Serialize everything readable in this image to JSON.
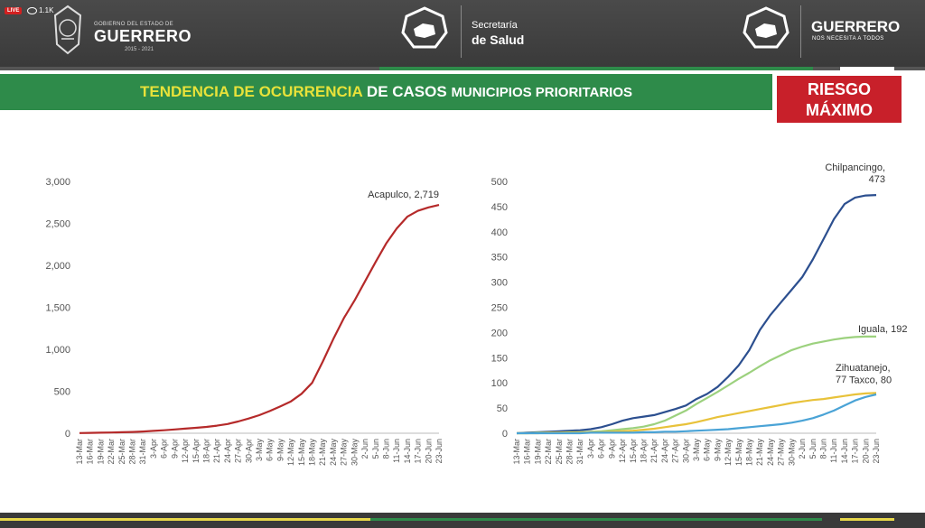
{
  "header": {
    "live_badge": "LIVE",
    "viewer_count": "1.1K",
    "gov_small": "GOBIERNO DEL ESTADO DE",
    "gov_big": "GUERRERO",
    "gov_years": "2015 - 2021",
    "secretaria_small": "Secretaría",
    "secretaria_big": "de Salud",
    "guerrero_big": "GUERRERO",
    "guerrero_tagline": "NOS NECESITA A TODOS"
  },
  "banner": {
    "part1": "TENDENCIA DE OCURRENCIA",
    "part2": " DE CASOS ",
    "part3": "MUNICIPIOS PRIORITARIOS",
    "riesgo_line1": "RIESGO",
    "riesgo_line2": "MÁXIMO"
  },
  "colors": {
    "banner_green": "#2e8b4a",
    "accent_yellow": "#e8e23a",
    "riesgo_red": "#c8202a",
    "acapulco": "#b52a2a",
    "chilpancingo": "#2c4f8f",
    "iguala": "#9cd17e",
    "taxco": "#e8c23a",
    "zihuatanejo": "#4aa3d6"
  },
  "chart_data": [
    {
      "type": "line",
      "x": [
        "13-Mar",
        "16-Mar",
        "19-Mar",
        "22-Mar",
        "25-Mar",
        "28-Mar",
        "31-Mar",
        "3-Apr",
        "6-Apr",
        "9-Apr",
        "12-Apr",
        "15-Apr",
        "18-Apr",
        "21-Apr",
        "24-Apr",
        "27-Apr",
        "30-Apr",
        "3-May",
        "6-May",
        "9-May",
        "12-May",
        "15-May",
        "18-May",
        "21-May",
        "24-May",
        "27-May",
        "30-May",
        "2-Jun",
        "5-Jun",
        "8-Jun",
        "11-Jun",
        "14-Jun",
        "17-Jun",
        "20-Jun",
        "23-Jun"
      ],
      "ylim": [
        0,
        3000
      ],
      "yticks": [
        "0",
        "500",
        "1,000",
        "1,500",
        "2,000",
        "2,500",
        "3,000"
      ],
      "ytick_values": [
        0,
        500,
        1000,
        1500,
        2000,
        2500,
        3000
      ],
      "series": [
        {
          "name": "Acapulco",
          "label": "Acapulco, 2,719",
          "values": [
            2,
            4,
            6,
            9,
            12,
            15,
            20,
            28,
            35,
            45,
            55,
            65,
            75,
            90,
            110,
            140,
            175,
            215,
            265,
            320,
            380,
            470,
            600,
            850,
            1120,
            1370,
            1580,
            1810,
            2040,
            2260,
            2440,
            2580,
            2650,
            2690,
            2719
          ]
        }
      ]
    },
    {
      "type": "line",
      "x": [
        "13-Mar",
        "16-Mar",
        "19-Mar",
        "22-Mar",
        "25-Mar",
        "28-Mar",
        "31-Mar",
        "3-Apr",
        "6-Apr",
        "9-Apr",
        "12-Apr",
        "15-Apr",
        "18-Apr",
        "21-Apr",
        "24-Apr",
        "27-Apr",
        "30-Apr",
        "3-May",
        "6-May",
        "9-May",
        "12-May",
        "15-May",
        "18-May",
        "21-May",
        "24-May",
        "27-May",
        "30-May",
        "2-Jun",
        "5-Jun",
        "8-Jun",
        "11-Jun",
        "14-Jun",
        "17-Jun",
        "20-Jun",
        "23-Jun"
      ],
      "ylim": [
        0,
        500
      ],
      "yticks": [
        "0",
        "50",
        "100",
        "150",
        "200",
        "250",
        "300",
        "350",
        "400",
        "450",
        "500"
      ],
      "ytick_values": [
        0,
        50,
        100,
        150,
        200,
        250,
        300,
        350,
        400,
        450,
        500
      ],
      "series": [
        {
          "name": "Chilpancingo",
          "label_line1": "Chilpancingo,",
          "label_line2": "473",
          "values": [
            0,
            1,
            2,
            3,
            4,
            5,
            6,
            8,
            12,
            18,
            25,
            30,
            33,
            36,
            42,
            48,
            55,
            68,
            78,
            92,
            112,
            135,
            165,
            205,
            235,
            260,
            285,
            310,
            345,
            385,
            425,
            455,
            468,
            472,
            473
          ]
        },
        {
          "name": "Iguala",
          "label": "Iguala, 192",
          "values": [
            0,
            0,
            1,
            1,
            1,
            2,
            2,
            3,
            4,
            6,
            8,
            10,
            13,
            18,
            25,
            35,
            45,
            58,
            70,
            82,
            95,
            108,
            120,
            133,
            145,
            155,
            165,
            172,
            178,
            182,
            186,
            189,
            191,
            192,
            192
          ]
        },
        {
          "name": "Taxco",
          "label": "Taxco, 80",
          "values": [
            0,
            0,
            0,
            1,
            1,
            1,
            1,
            2,
            2,
            3,
            4,
            5,
            7,
            9,
            12,
            15,
            18,
            22,
            27,
            32,
            36,
            40,
            44,
            48,
            52,
            56,
            60,
            63,
            66,
            68,
            71,
            74,
            77,
            79,
            80
          ]
        },
        {
          "name": "Zihuatanejo",
          "label_line1": "Zihuatanejo,",
          "label_line2": "77",
          "values": [
            0,
            0,
            0,
            0,
            0,
            0,
            0,
            1,
            1,
            1,
            1,
            1,
            2,
            2,
            3,
            3,
            4,
            5,
            6,
            7,
            8,
            10,
            12,
            14,
            16,
            18,
            21,
            25,
            30,
            37,
            45,
            55,
            65,
            72,
            77
          ]
        }
      ]
    }
  ]
}
